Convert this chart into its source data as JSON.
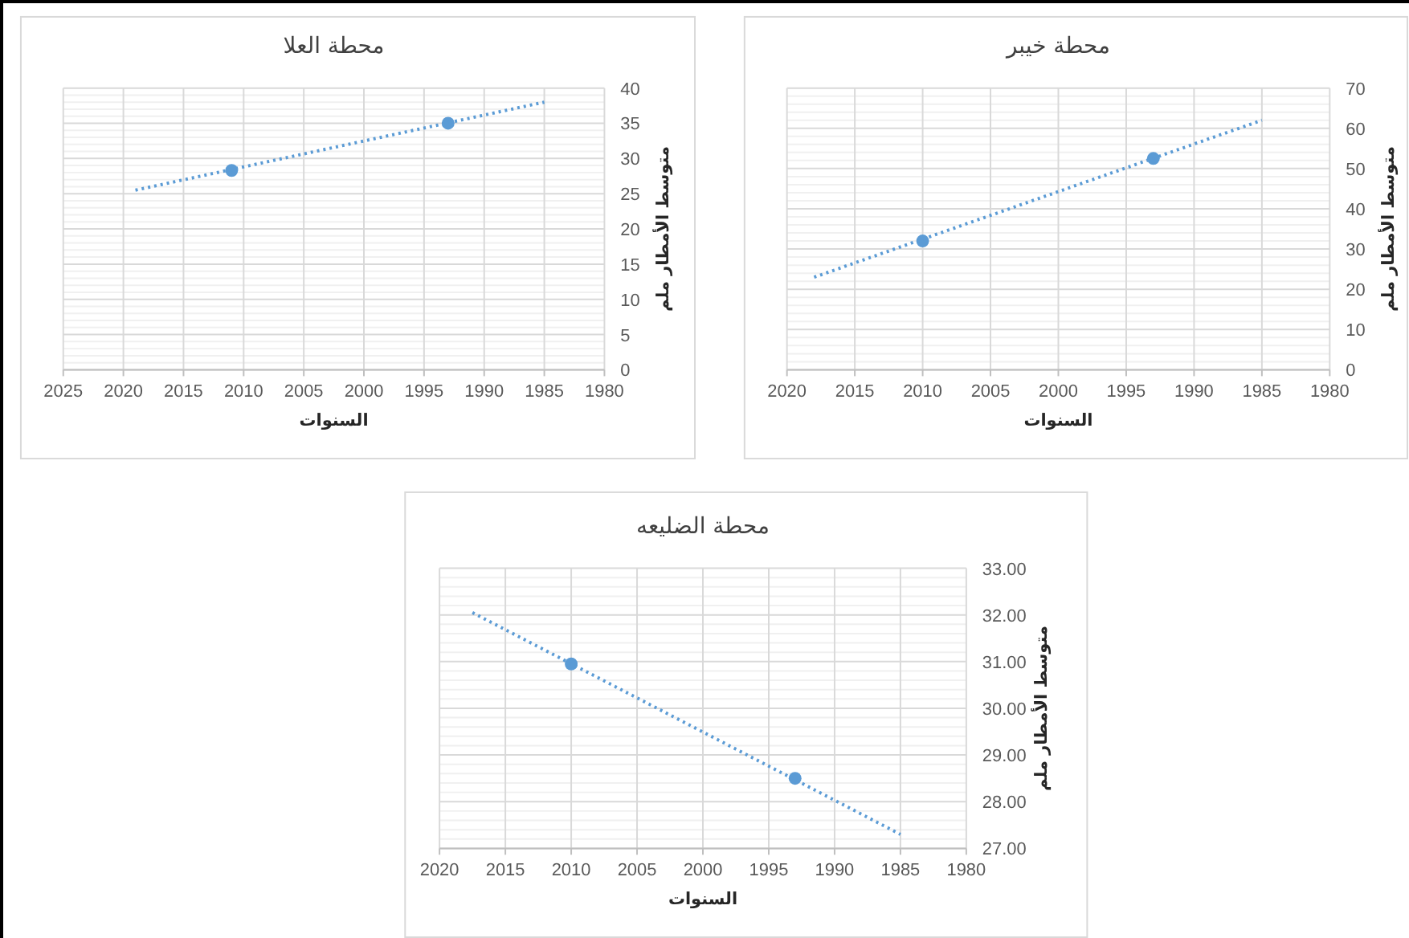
{
  "chart_data": [
    {
      "type": "scatter",
      "title": "محطة العلا",
      "xlabel": "السنوات",
      "ylabel": "متوسط الأمطار ملم",
      "xlim": [
        2025,
        1980
      ],
      "xticks": [
        2025,
        2020,
        2015,
        2010,
        2005,
        2000,
        1995,
        1990,
        1985,
        1980
      ],
      "ylim": [
        0,
        40
      ],
      "yticks": [
        0,
        5,
        10,
        15,
        20,
        25,
        30,
        35,
        40
      ],
      "grid": true,
      "marker": "circle",
      "series": [
        {
          "type": "scatter",
          "x": [
            2011,
            1993
          ],
          "values": [
            28.3,
            35
          ],
          "color": "#5b9bd5"
        },
        {
          "type": "line",
          "x": [
            2019,
            1985
          ],
          "values": [
            25.5,
            38
          ],
          "color": "#5b9bd5",
          "marker": "none",
          "line_style": "dotted"
        }
      ]
    },
    {
      "type": "scatter",
      "title": "محطة خيبر",
      "xlabel": "السنوات",
      "ylabel": "متوسط الأمطار ملم",
      "xlim": [
        2020,
        1980
      ],
      "xticks": [
        2020,
        2015,
        2010,
        2005,
        2000,
        1995,
        1990,
        1985,
        1980
      ],
      "ylim": [
        0,
        70
      ],
      "yticks": [
        0,
        10,
        20,
        30,
        40,
        50,
        60,
        70
      ],
      "grid": true,
      "marker": "circle",
      "series": [
        {
          "type": "scatter",
          "x": [
            2010,
            1993
          ],
          "values": [
            32,
            52.5
          ],
          "color": "#5b9bd5"
        },
        {
          "type": "line",
          "x": [
            2018,
            1985
          ],
          "values": [
            23,
            62
          ],
          "color": "#5b9bd5",
          "marker": "none",
          "line_style": "dotted"
        }
      ]
    },
    {
      "type": "scatter",
      "title": "محطة الضليعه",
      "xlabel": "السنوات",
      "ylabel": "متوسط الأمطار ملم",
      "xlim": [
        2020,
        1980
      ],
      "xticks": [
        2020,
        2015,
        2010,
        2005,
        2000,
        1995,
        1990,
        1985,
        1980
      ],
      "ylim": [
        27,
        33
      ],
      "yticks": [
        {
          "value": 27,
          "label": "27.00"
        },
        {
          "value": 28,
          "label": "28.00"
        },
        {
          "value": 29,
          "label": "29.00"
        },
        {
          "value": 30,
          "label": "30.00"
        },
        {
          "value": 31,
          "label": "31.00"
        },
        {
          "value": 32,
          "label": "32.00"
        },
        {
          "value": 33,
          "label": "33.00"
        }
      ],
      "grid": true,
      "marker": "circle",
      "series": [
        {
          "type": "scatter",
          "x": [
            2010,
            1993
          ],
          "values": [
            30.95,
            28.5
          ],
          "color": "#5b9bd5"
        },
        {
          "type": "line",
          "x": [
            2017.5,
            1985
          ],
          "values": [
            32.05,
            27.3
          ],
          "color": "#5b9bd5",
          "marker": "none",
          "line_style": "dotted"
        }
      ]
    }
  ]
}
